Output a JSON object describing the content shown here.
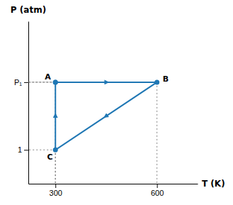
{
  "chart_data": {
    "type": "line",
    "x": [
      300,
      600,
      300,
      300
    ],
    "series": [
      {
        "values": [
          2,
          2,
          1,
          2
        ],
        "marker": "o"
      }
    ],
    "annotations": [
      {
        "text": "A",
        "x": 300,
        "y": 2
      },
      {
        "text": "B",
        "x": 600,
        "y": 2
      },
      {
        "text": "C",
        "x": 300,
        "y": 1
      }
    ],
    "xlabel": "T (K)",
    "ylabel": "P (atm)",
    "xlim": [
      220,
      720
    ],
    "ylim": [
      0.5,
      2.9
    ],
    "xticks": [
      300,
      600
    ],
    "yticks": [
      1,
      {
        "value": 2,
        "label": "P₁"
      }
    ],
    "grid": false
  }
}
